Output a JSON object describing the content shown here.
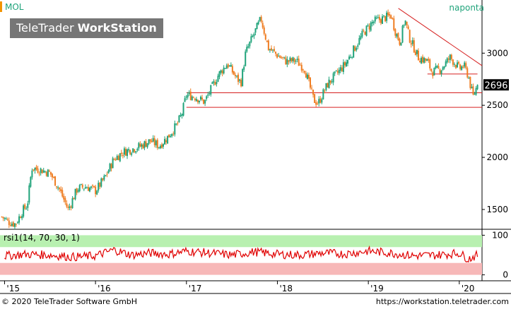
{
  "header": {
    "ticker": "MOL",
    "period": "naponta",
    "brand_light": "TeleTrader ",
    "brand_bold": "WorkStation"
  },
  "footer": {
    "copyright": "© 2020 TeleTrader Software GmbH",
    "url": "https://workstation.teletrader.com"
  },
  "colors": {
    "up": "#1fa37a",
    "down": "#ef7d22",
    "support": "#d62020",
    "rsi_line": "#e00000",
    "rsi_overbought_zone": "#b8f0b0",
    "rsi_oversold_zone": "#f7b8b8",
    "last_price_bg": "#000000"
  },
  "chart_data": [
    {
      "type": "candlestick",
      "ticker": "MOL",
      "frequency": "naponta",
      "last_price": 2696,
      "last_price_label": "2696",
      "y_ticks": [
        1500,
        2000,
        2500,
        3000
      ],
      "y_tick_labels": [
        "1500",
        "2000",
        "2500",
        "3000"
      ],
      "x_ticks": [
        2015,
        2016,
        2017,
        2018,
        2019,
        2020
      ],
      "x_tick_labels": [
        "'15",
        "'16",
        "'17",
        "'18",
        "'19",
        "'20"
      ],
      "xlim": [
        2014.95,
        2020.25
      ],
      "ylim": [
        1310,
        3510
      ],
      "path": [
        [
          2014.97,
          1430
        ],
        [
          2015.05,
          1380
        ],
        [
          2015.12,
          1360
        ],
        [
          2015.2,
          1490
        ],
        [
          2015.25,
          1540
        ],
        [
          2015.3,
          1900
        ],
        [
          2015.4,
          1880
        ],
        [
          2015.5,
          1850
        ],
        [
          2015.6,
          1700
        ],
        [
          2015.7,
          1500
        ],
        [
          2015.8,
          1700
        ],
        [
          2015.9,
          1720
        ],
        [
          2016.0,
          1680
        ],
        [
          2016.1,
          1800
        ],
        [
          2016.2,
          1980
        ],
        [
          2016.3,
          2050
        ],
        [
          2016.4,
          2080
        ],
        [
          2016.5,
          2110
        ],
        [
          2016.6,
          2160
        ],
        [
          2016.7,
          2110
        ],
        [
          2016.8,
          2200
        ],
        [
          2016.9,
          2320
        ],
        [
          2016.95,
          2420
        ],
        [
          2017.0,
          2600
        ],
        [
          2017.1,
          2580
        ],
        [
          2017.2,
          2530
        ],
        [
          2017.25,
          2620
        ],
        [
          2017.35,
          2790
        ],
        [
          2017.45,
          2900
        ],
        [
          2017.55,
          2760
        ],
        [
          2017.6,
          2720
        ],
        [
          2017.65,
          3000
        ],
        [
          2017.75,
          3200
        ],
        [
          2017.82,
          3330
        ],
        [
          2017.9,
          3050
        ],
        [
          2018.0,
          2980
        ],
        [
          2018.1,
          2920
        ],
        [
          2018.2,
          2930
        ],
        [
          2018.3,
          2850
        ],
        [
          2018.4,
          2550
        ],
        [
          2018.45,
          2520
        ],
        [
          2018.55,
          2700
        ],
        [
          2018.65,
          2800
        ],
        [
          2018.75,
          2900
        ],
        [
          2018.85,
          3050
        ],
        [
          2018.95,
          3200
        ],
        [
          2019.05,
          3300
        ],
        [
          2019.15,
          3330
        ],
        [
          2019.25,
          3360
        ],
        [
          2019.3,
          3200
        ],
        [
          2019.35,
          3100
        ],
        [
          2019.4,
          3330
        ],
        [
          2019.45,
          3150
        ],
        [
          2019.55,
          2960
        ],
        [
          2019.65,
          2920
        ],
        [
          2019.7,
          2820
        ],
        [
          2019.8,
          2850
        ],
        [
          2019.9,
          2960
        ],
        [
          2020.0,
          2850
        ],
        [
          2020.05,
          2880
        ],
        [
          2020.1,
          2780
        ],
        [
          2020.15,
          2580
        ],
        [
          2020.2,
          2696
        ]
      ],
      "lines": [
        {
          "kind": "support",
          "x0": 2017.0,
          "x1": 2020.25,
          "value": 2620
        },
        {
          "kind": "support",
          "x0": 2017.0,
          "x1": 2020.25,
          "value": 2480
        },
        {
          "kind": "support",
          "x0": 2019.65,
          "x1": 2020.2,
          "value": 2800
        },
        {
          "kind": "trendline",
          "x0": 2019.33,
          "y0": 3430,
          "x1": 2020.25,
          "y1": 2880
        }
      ]
    },
    {
      "type": "line",
      "indicator_label": "rsi1(14, 70, 30, 1)",
      "ylim": [
        -15,
        115
      ],
      "y_ticks": [
        0,
        100
      ],
      "y_tick_labels": [
        "0",
        "100"
      ],
      "bands": {
        "overbought": [
          70,
          100
        ],
        "oversold": [
          0,
          30
        ]
      },
      "x": [
        2015.0,
        2015.25,
        2015.5,
        2015.75,
        2016.0,
        2016.2,
        2016.4,
        2016.6,
        2016.8,
        2017.0,
        2017.25,
        2017.5,
        2017.75,
        2018.0,
        2018.25,
        2018.5,
        2018.75,
        2019.0,
        2019.25,
        2019.5,
        2019.75,
        2020.0,
        2020.1,
        2020.2
      ],
      "values": [
        48,
        52,
        50,
        45,
        48,
        63,
        50,
        55,
        52,
        60,
        55,
        50,
        58,
        52,
        50,
        55,
        53,
        60,
        55,
        48,
        50,
        55,
        40,
        50
      ]
    }
  ]
}
